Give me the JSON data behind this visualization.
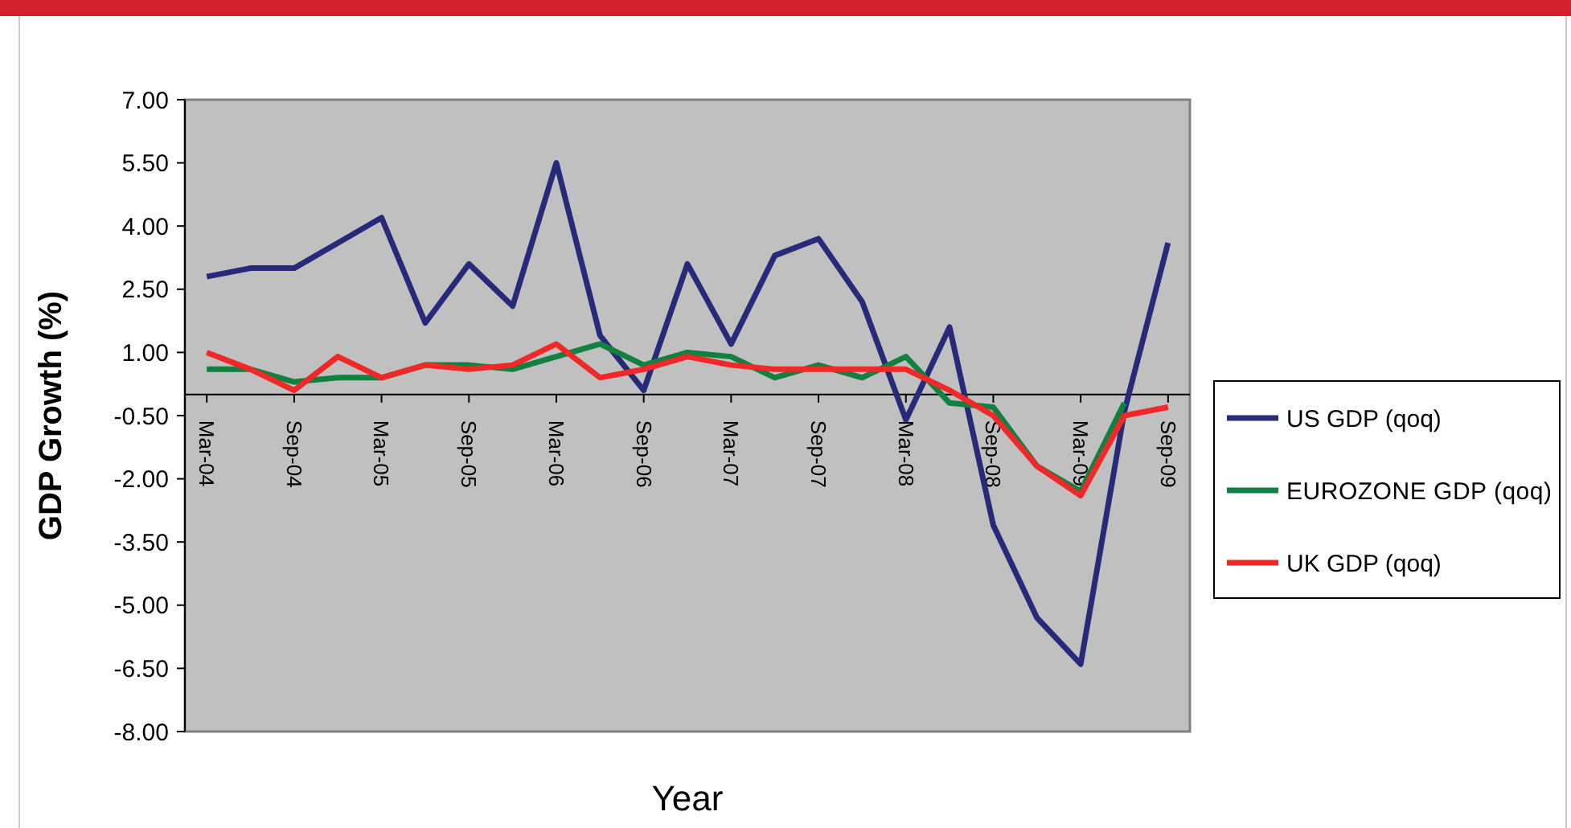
{
  "chart_data": {
    "type": "line",
    "xlabel": "Year",
    "ylabel": "GDP Growth (%)",
    "categories": [
      "Mar-04",
      null,
      "Sep-04",
      null,
      "Mar-05",
      null,
      "Sep-05",
      null,
      "Mar-06",
      null,
      "Sep-06",
      null,
      "Mar-07",
      null,
      "Sep-07",
      null,
      "Mar-08",
      null,
      "Sep-08",
      null,
      "Mar-09",
      null,
      "Sep-09"
    ],
    "series": [
      {
        "name": "US GDP (qoq)",
        "color": "#262a78",
        "values": [
          2.8,
          3.0,
          3.0,
          3.6,
          4.2,
          1.7,
          3.1,
          2.1,
          5.5,
          1.4,
          0.1,
          3.1,
          1.2,
          3.3,
          3.7,
          2.2,
          -0.6,
          1.6,
          -3.1,
          -5.3,
          -6.4,
          -0.4,
          3.6
        ]
      },
      {
        "name": "EUROZONE GDP (qoq)",
        "color": "#118040",
        "values": [
          0.6,
          0.6,
          0.3,
          0.4,
          0.4,
          0.7,
          0.7,
          0.6,
          0.9,
          1.2,
          0.7,
          1.0,
          0.9,
          0.4,
          0.7,
          0.4,
          0.9,
          -0.2,
          -0.3,
          -1.7,
          -2.3,
          -0.2,
          null
        ]
      },
      {
        "name": "UK GDP (qoq)",
        "color": "#f02828",
        "values": [
          1.0,
          0.6,
          0.1,
          0.9,
          0.4,
          0.7,
          0.6,
          0.7,
          1.2,
          0.4,
          0.6,
          0.9,
          0.7,
          0.6,
          0.6,
          0.6,
          0.6,
          0.1,
          -0.5,
          -1.7,
          -2.4,
          -0.5,
          -0.3
        ]
      }
    ],
    "ylim": [
      -8,
      7
    ],
    "yticks": [
      {
        "value": 7,
        "label": "7.00"
      },
      {
        "value": 5.5,
        "label": "5.50"
      },
      {
        "value": 4,
        "label": "4.00"
      },
      {
        "value": 2.5,
        "label": "2.50"
      },
      {
        "value": 1,
        "label": "1.00"
      },
      {
        "value": -0.5,
        "label": "-0.50"
      },
      {
        "value": -2,
        "label": "-2.00"
      },
      {
        "value": -3.5,
        "label": "-3.50"
      },
      {
        "value": -5,
        "label": "-5.00"
      },
      {
        "value": -6.5,
        "label": "-6.50"
      },
      {
        "value": -8,
        "label": "-8.00"
      }
    ],
    "grid": false,
    "legend": "right",
    "marker": "none",
    "line_style": "solid"
  }
}
